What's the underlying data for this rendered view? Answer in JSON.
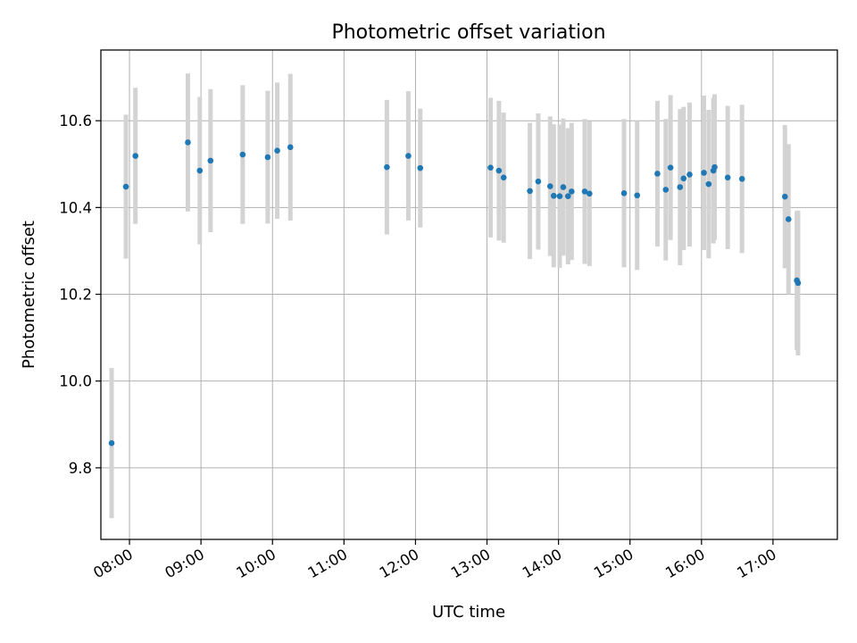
{
  "chart_data": {
    "type": "scatter",
    "title": "Photometric offset variation",
    "xlabel": "UTC time",
    "ylabel": "Photometric offset",
    "xlim": [
      "07:36",
      "17:54"
    ],
    "ylim": [
      9.635,
      10.763
    ],
    "x_ticks": [
      "08:00",
      "09:00",
      "10:00",
      "11:00",
      "12:00",
      "13:00",
      "14:00",
      "15:00",
      "16:00",
      "17:00"
    ],
    "y_ticks": [
      "9.8",
      "10.0",
      "10.2",
      "10.4",
      "10.6"
    ],
    "grid": true,
    "legend": "none",
    "colors": {
      "point": "#1f77b4",
      "errorbar": "#d3d3d3",
      "grid": "#b0b0b0"
    },
    "series": [
      {
        "points": [
          {
            "x": "07:45",
            "y": 9.857,
            "yerr": 0.173
          },
          {
            "x": "07:57",
            "y": 10.448,
            "yerr": 0.166
          },
          {
            "x": "08:05",
            "y": 10.519,
            "yerr": 0.157
          },
          {
            "x": "08:49",
            "y": 10.55,
            "yerr": 0.159
          },
          {
            "x": "08:59",
            "y": 10.485,
            "yerr": 0.17
          },
          {
            "x": "09:08",
            "y": 10.508,
            "yerr": 0.165
          },
          {
            "x": "09:35",
            "y": 10.522,
            "yerr": 0.16
          },
          {
            "x": "09:56",
            "y": 10.516,
            "yerr": 0.153
          },
          {
            "x": "10:04",
            "y": 10.531,
            "yerr": 0.157
          },
          {
            "x": "10:15",
            "y": 10.539,
            "yerr": 0.169
          },
          {
            "x": "11:36",
            "y": 10.493,
            "yerr": 0.155
          },
          {
            "x": "11:54",
            "y": 10.519,
            "yerr": 0.149
          },
          {
            "x": "12:04",
            "y": 10.491,
            "yerr": 0.137
          },
          {
            "x": "13:03",
            "y": 10.492,
            "yerr": 0.161
          },
          {
            "x": "13:10",
            "y": 10.485,
            "yerr": 0.161
          },
          {
            "x": "13:14",
            "y": 10.469,
            "yerr": 0.15
          },
          {
            "x": "13:36",
            "y": 10.438,
            "yerr": 0.157
          },
          {
            "x": "13:43",
            "y": 10.46,
            "yerr": 0.157
          },
          {
            "x": "13:53",
            "y": 10.449,
            "yerr": 0.161
          },
          {
            "x": "13:56",
            "y": 10.427,
            "yerr": 0.165
          },
          {
            "x": "14:01",
            "y": 10.426,
            "yerr": 0.165
          },
          {
            "x": "14:04",
            "y": 10.447,
            "yerr": 0.158
          },
          {
            "x": "14:08",
            "y": 10.426,
            "yerr": 0.157
          },
          {
            "x": "14:11",
            "y": 10.437,
            "yerr": 0.158
          },
          {
            "x": "14:22",
            "y": 10.437,
            "yerr": 0.167
          },
          {
            "x": "14:26",
            "y": 10.432,
            "yerr": 0.167
          },
          {
            "x": "14:55",
            "y": 10.433,
            "yerr": 0.171
          },
          {
            "x": "15:06",
            "y": 10.428,
            "yerr": 0.172
          },
          {
            "x": "15:23",
            "y": 10.478,
            "yerr": 0.168
          },
          {
            "x": "15:30",
            "y": 10.441,
            "yerr": 0.163
          },
          {
            "x": "15:34",
            "y": 10.492,
            "yerr": 0.167
          },
          {
            "x": "15:42",
            "y": 10.447,
            "yerr": 0.18
          },
          {
            "x": "15:45",
            "y": 10.467,
            "yerr": 0.165
          },
          {
            "x": "15:50",
            "y": 10.476,
            "yerr": 0.166
          },
          {
            "x": "16:02",
            "y": 10.48,
            "yerr": 0.178
          },
          {
            "x": "16:06",
            "y": 10.454,
            "yerr": 0.171
          },
          {
            "x": "16:10",
            "y": 10.485,
            "yerr": 0.168
          },
          {
            "x": "16:11",
            "y": 10.493,
            "yerr": 0.168
          },
          {
            "x": "16:22",
            "y": 10.469,
            "yerr": 0.165
          },
          {
            "x": "16:34",
            "y": 10.466,
            "yerr": 0.171
          },
          {
            "x": "17:10",
            "y": 10.425,
            "yerr": 0.165
          },
          {
            "x": "17:13",
            "y": 10.373,
            "yerr": 0.173
          },
          {
            "x": "17:20",
            "y": 10.232,
            "yerr": 0.16
          },
          {
            "x": "17:21",
            "y": 10.226,
            "yerr": 0.167
          }
        ]
      }
    ]
  }
}
